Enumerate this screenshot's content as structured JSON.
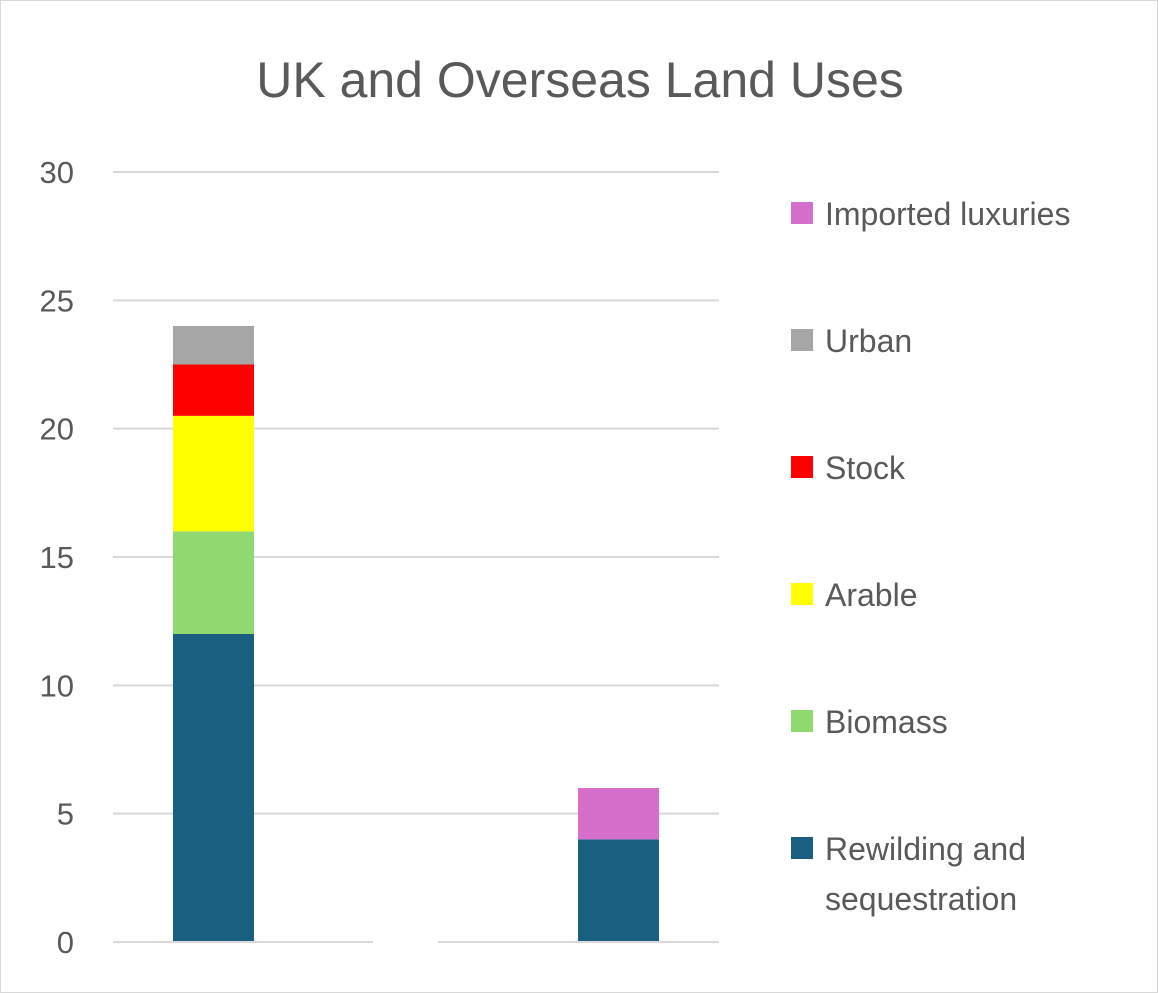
{
  "chart_data": {
    "type": "bar",
    "stacked": true,
    "title": "UK and Overseas Land Uses",
    "xlabel": "",
    "ylabel": "",
    "categories": [
      "",
      ""
    ],
    "ylim": [
      0,
      30
    ],
    "yticks": [
      0,
      5,
      10,
      15,
      20,
      25,
      30
    ],
    "grid": true,
    "legend_position": "right",
    "legend_order": [
      "Imported luxuries",
      "Urban",
      "Stock",
      "Arable",
      "Biomass",
      "Rewilding and sequestration"
    ],
    "series": [
      {
        "name": "Rewilding and sequestration",
        "values": [
          12,
          4
        ],
        "color": "#1a5e80"
      },
      {
        "name": "Biomass",
        "values": [
          4,
          0
        ],
        "color": "#8fd970"
      },
      {
        "name": "Arable",
        "values": [
          4.5,
          0
        ],
        "color": "#ffff00"
      },
      {
        "name": "Stock",
        "values": [
          2,
          0
        ],
        "color": "#ff0000"
      },
      {
        "name": "Urban",
        "values": [
          1.5,
          0
        ],
        "color": "#a6a6a6"
      },
      {
        "name": "Imported luxuries",
        "values": [
          0,
          2
        ],
        "color": "#d66fcc"
      }
    ]
  },
  "colors": {
    "text": "#595959",
    "gridline": "#d9d9d9",
    "background": "#ffffff"
  }
}
